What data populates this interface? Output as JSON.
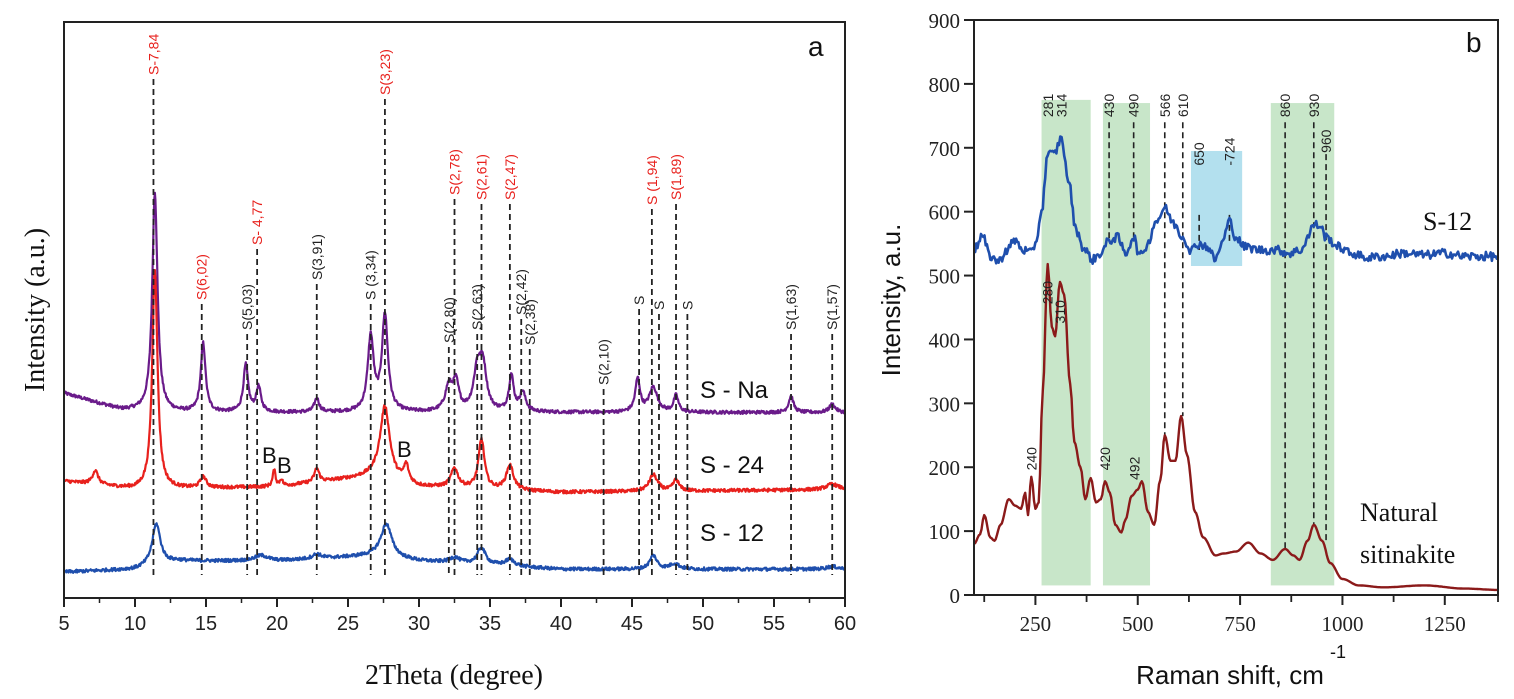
{
  "chart_data": [
    {
      "panel": "a",
      "type": "line",
      "title": "",
      "panel_label": "a",
      "xlabel": "2Theta (degree)",
      "ylabel": "Intensity (a.u.)",
      "xlim": [
        5,
        60
      ],
      "xticks": [
        5,
        10,
        15,
        20,
        25,
        30,
        35,
        40,
        45,
        50,
        55,
        60
      ],
      "x_minor_step": 2.5,
      "yticks": [],
      "grid": false,
      "series": [
        {
          "name": "S - Na",
          "color": "#6a1b8a",
          "baseline": 0.0,
          "offset": 2.9,
          "peaks": [
            [
              11.4,
              4.0,
              0.22
            ],
            [
              14.8,
              1.25,
              0.2
            ],
            [
              17.8,
              0.85,
              0.2
            ],
            [
              18.7,
              0.45,
              0.2
            ],
            [
              22.8,
              0.25,
              0.2
            ],
            [
              26.6,
              1.35,
              0.25
            ],
            [
              27.6,
              1.75,
              0.25
            ],
            [
              32.1,
              0.45,
              0.3
            ],
            [
              32.6,
              0.5,
              0.25
            ],
            [
              34.1,
              0.7,
              0.3
            ],
            [
              34.5,
              0.8,
              0.3
            ],
            [
              36.5,
              0.65,
              0.2
            ],
            [
              37.3,
              0.35,
              0.25
            ],
            [
              45.4,
              0.6,
              0.2
            ],
            [
              46.5,
              0.45,
              0.35
            ],
            [
              48.1,
              0.3,
              0.2
            ],
            [
              56.2,
              0.3,
              0.2
            ],
            [
              59.1,
              0.15,
              0.25
            ]
          ],
          "background": [
            [
              5,
              0.35
            ],
            [
              9,
              0.05
            ],
            [
              12,
              0.0
            ],
            [
              60,
              0.0
            ]
          ]
        },
        {
          "name": "S - 24",
          "color": "#e8211d",
          "offset": 1.45,
          "peaks": [
            [
              7.2,
              0.25,
              0.25
            ],
            [
              11.4,
              4.0,
              0.22
            ],
            [
              14.8,
              0.2,
              0.25
            ],
            [
              19.8,
              0.3,
              0.12
            ],
            [
              20.3,
              0.12,
              0.12
            ],
            [
              22.8,
              0.25,
              0.2
            ],
            [
              27.6,
              1.3,
              0.4
            ],
            [
              29.1,
              0.3,
              0.2
            ],
            [
              32.5,
              0.35,
              0.3
            ],
            [
              34.4,
              0.9,
              0.25
            ],
            [
              36.4,
              0.45,
              0.3
            ],
            [
              46.5,
              0.3,
              0.35
            ],
            [
              48.1,
              0.2,
              0.25
            ],
            [
              59.1,
              0.1,
              0.5
            ]
          ],
          "background": [
            [
              5,
              0.2
            ],
            [
              10,
              0.05
            ],
            [
              20,
              0.1
            ],
            [
              27,
              0.3
            ],
            [
              30,
              0.1
            ],
            [
              40,
              0.0
            ],
            [
              60,
              0.05
            ]
          ]
        },
        {
          "name": "S - 12",
          "color": "#1f4fad",
          "offset": 0.0,
          "peaks": [
            [
              11.5,
              0.75,
              0.35
            ],
            [
              18.9,
              0.1,
              0.6
            ],
            [
              22.8,
              0.08,
              0.4
            ],
            [
              27.7,
              0.6,
              0.45
            ],
            [
              32.5,
              0.1,
              0.4
            ],
            [
              34.4,
              0.3,
              0.35
            ],
            [
              36.4,
              0.12,
              0.4
            ],
            [
              46.5,
              0.25,
              0.3
            ],
            [
              48.0,
              0.1,
              0.4
            ],
            [
              59.1,
              0.05,
              0.5
            ]
          ],
          "background": [
            [
              5,
              0.0
            ],
            [
              10,
              0.05
            ],
            [
              13,
              0.2
            ],
            [
              20,
              0.2
            ],
            [
              27,
              0.3
            ],
            [
              30,
              0.2
            ],
            [
              40,
              0.05
            ],
            [
              60,
              0.05
            ]
          ]
        }
      ],
      "series_labels": [
        "S - Na",
        "S - 24",
        "S - 12"
      ],
      "reference_lines": [
        {
          "x": 11.3,
          "label": "S-7,84",
          "color": "#e8211d"
        },
        {
          "x": 14.7,
          "label": "S(6,02)",
          "color": "#e8211d"
        },
        {
          "x": 17.9,
          "label": "S(5,03)",
          "color": "#222222"
        },
        {
          "x": 18.6,
          "label": "S- 4,77",
          "color": "#e8211d"
        },
        {
          "x": 22.8,
          "label": "S(3,91)",
          "color": "#222222"
        },
        {
          "x": 26.6,
          "label": "S (3,34)",
          "color": "#222222"
        },
        {
          "x": 27.6,
          "label": "S(3,23)",
          "color": "#e8211d"
        },
        {
          "x": 32.1,
          "label": "S(2,80)",
          "color": "#222222"
        },
        {
          "x": 32.5,
          "label": "S(2,78)",
          "color": "#e8211d"
        },
        {
          "x": 34.1,
          "label": "S(2,63)",
          "color": "#222222"
        },
        {
          "x": 34.4,
          "label": "S(2,61)",
          "color": "#e8211d"
        },
        {
          "x": 36.4,
          "label": "S(2,47)",
          "color": "#e8211d"
        },
        {
          "x": 37.2,
          "label": "S(2,42)",
          "color": "#222222"
        },
        {
          "x": 37.8,
          "label": "S(2,38)",
          "color": "#222222"
        },
        {
          "x": 43.0,
          "label": "S(2,10)",
          "color": "#222222"
        },
        {
          "x": 45.5,
          "label": "S",
          "color": "#222222"
        },
        {
          "x": 46.4,
          "label": "S (1,94)",
          "color": "#e8211d"
        },
        {
          "x": 46.9,
          "label": "S",
          "color": "#222222"
        },
        {
          "x": 48.1,
          "label": "S(1,89)",
          "color": "#e8211d"
        },
        {
          "x": 48.9,
          "label": "S",
          "color": "#222222"
        },
        {
          "x": 56.2,
          "label": "S(1,63)",
          "color": "#222222"
        },
        {
          "x": 59.1,
          "label": "S(1,57)",
          "color": "#222222"
        }
      ],
      "annotations": [
        {
          "text": "B",
          "x": 19.5,
          "series": "S - 24"
        },
        {
          "text": "B",
          "x": 20.4,
          "series": "S - 24"
        },
        {
          "text": "B",
          "x": 29.4,
          "series": "S - 24"
        }
      ]
    },
    {
      "panel": "b",
      "type": "line",
      "title": "",
      "panel_label": "b",
      "xlabel": "Raman shift, cm",
      "xlabel_superscript": "-1",
      "ylabel": "Intensity, a.u.",
      "xlim": [
        100,
        1380
      ],
      "ylim": [
        0,
        900
      ],
      "xticks": [
        250,
        500,
        750,
        1000,
        1250
      ],
      "x_minor_ticks": [
        125,
        375,
        625,
        875,
        1125,
        1380
      ],
      "yticks": [
        0,
        100,
        200,
        300,
        400,
        500,
        600,
        700,
        800,
        900
      ],
      "grid": false,
      "shaded_regions": [
        {
          "from": 265,
          "to": 385,
          "ymin": 15,
          "ymax": 775,
          "color": "#c8e6c9"
        },
        {
          "from": 415,
          "to": 530,
          "ymin": 15,
          "ymax": 770,
          "color": "#c8e6c9"
        },
        {
          "from": 630,
          "to": 755,
          "ymin": 515,
          "ymax": 695,
          "color": "#b3e0ee"
        },
        {
          "from": 825,
          "to": 980,
          "ymin": 15,
          "ymax": 770,
          "color": "#c8e6c9"
        }
      ],
      "series": [
        {
          "name": "S-12",
          "color": "#1f4fad",
          "points": [
            [
              100,
              540
            ],
            [
              120,
              562
            ],
            [
              140,
              530
            ],
            [
              160,
              522
            ],
            [
              180,
              540
            ],
            [
              200,
              555
            ],
            [
              220,
              540
            ],
            [
              240,
              535
            ],
            [
              250,
              550
            ],
            [
              265,
              600
            ],
            [
              280,
              690
            ],
            [
              295,
              690
            ],
            [
              314,
              715
            ],
            [
              330,
              650
            ],
            [
              350,
              570
            ],
            [
              370,
              540
            ],
            [
              390,
              525
            ],
            [
              410,
              535
            ],
            [
              430,
              555
            ],
            [
              450,
              560
            ],
            [
              470,
              535
            ],
            [
              490,
              560
            ],
            [
              505,
              530
            ],
            [
              520,
              545
            ],
            [
              545,
              585
            ],
            [
              566,
              605
            ],
            [
              590,
              580
            ],
            [
              610,
              560
            ],
            [
              630,
              540
            ],
            [
              650,
              550
            ],
            [
              670,
              545
            ],
            [
              690,
              525
            ],
            [
              705,
              550
            ],
            [
              724,
              585
            ],
            [
              740,
              560
            ],
            [
              760,
              545
            ],
            [
              800,
              540
            ],
            [
              840,
              540
            ],
            [
              870,
              535
            ],
            [
              900,
              540
            ],
            [
              915,
              560
            ],
            [
              930,
              580
            ],
            [
              945,
              578
            ],
            [
              960,
              560
            ],
            [
              990,
              545
            ],
            [
              1020,
              535
            ],
            [
              1060,
              528
            ],
            [
              1100,
              530
            ],
            [
              1150,
              535
            ],
            [
              1200,
              532
            ],
            [
              1250,
              535
            ],
            [
              1300,
              530
            ],
            [
              1380,
              530
            ]
          ]
        },
        {
          "name": "Natural sitinakite",
          "color": "#8b1a1a",
          "points": [
            [
              100,
              80
            ],
            [
              115,
              95
            ],
            [
              125,
              125
            ],
            [
              140,
              90
            ],
            [
              150,
              85
            ],
            [
              165,
              110
            ],
            [
              185,
              150
            ],
            [
              200,
              140
            ],
            [
              215,
              135
            ],
            [
              225,
              160
            ],
            [
              232,
              125
            ],
            [
              240,
              185
            ],
            [
              250,
              135
            ],
            [
              258,
              145
            ],
            [
              268,
              320
            ],
            [
              280,
              518
            ],
            [
              290,
              420
            ],
            [
              298,
              405
            ],
            [
              310,
              490
            ],
            [
              320,
              470
            ],
            [
              335,
              330
            ],
            [
              345,
              240
            ],
            [
              360,
              200
            ],
            [
              372,
              150
            ],
            [
              385,
              183
            ],
            [
              398,
              145
            ],
            [
              410,
              150
            ],
            [
              420,
              178
            ],
            [
              432,
              160
            ],
            [
              445,
              110
            ],
            [
              460,
              98
            ],
            [
              470,
              118
            ],
            [
              485,
              155
            ],
            [
              500,
              165
            ],
            [
              510,
              178
            ],
            [
              525,
              130
            ],
            [
              540,
              110
            ],
            [
              555,
              180
            ],
            [
              566,
              250
            ],
            [
              580,
              210
            ],
            [
              592,
              210
            ],
            [
              606,
              280
            ],
            [
              620,
              220
            ],
            [
              640,
              130
            ],
            [
              660,
              90
            ],
            [
              690,
              62
            ],
            [
              710,
              65
            ],
            [
              740,
              68
            ],
            [
              770,
              82
            ],
            [
              800,
              65
            ],
            [
              830,
              55
            ],
            [
              860,
              72
            ],
            [
              880,
              62
            ],
            [
              895,
              55
            ],
            [
              915,
              85
            ],
            [
              930,
              110
            ],
            [
              950,
              85
            ],
            [
              970,
              50
            ],
            [
              1000,
              25
            ],
            [
              1040,
              15
            ],
            [
              1100,
              12
            ],
            [
              1200,
              15
            ],
            [
              1300,
              10
            ],
            [
              1380,
              8
            ]
          ]
        }
      ],
      "series_labels": [
        "S-12",
        "Natural sitinakite"
      ],
      "reference_lines": [
        {
          "x": 566,
          "ymin": 250,
          "ymax": 740
        },
        {
          "x": 610,
          "ymin": 280,
          "ymax": 740
        },
        {
          "x": 430,
          "ymin": 555,
          "ymax": 740
        },
        {
          "x": 490,
          "ymin": 560,
          "ymax": 740
        },
        {
          "x": 650,
          "ymin": 540,
          "ymax": 595
        },
        {
          "x": 724,
          "ymin": 550,
          "ymax": 595
        },
        {
          "x": 860,
          "ymin": 72,
          "ymax": 740
        },
        {
          "x": 930,
          "ymin": 110,
          "ymax": 740
        },
        {
          "x": 960,
          "ymin": 85,
          "ymax": 690
        }
      ],
      "peak_labels_s12": [
        {
          "x": 281,
          "text": "281"
        },
        {
          "x": 314,
          "text": "314"
        },
        {
          "x": 430,
          "text": "430"
        },
        {
          "x": 490,
          "text": "490"
        },
        {
          "x": 566,
          "text": "566"
        },
        {
          "x": 610,
          "text": "610"
        },
        {
          "x": 650,
          "text": "650"
        },
        {
          "x": 724,
          "text": "-724"
        },
        {
          "x": 860,
          "text": "860"
        },
        {
          "x": 930,
          "text": "930"
        },
        {
          "x": 960,
          "text": "960"
        }
      ],
      "peak_labels_natural": [
        {
          "x": 280,
          "text": "280"
        },
        {
          "x": 310,
          "text": "310"
        },
        {
          "x": 240,
          "text": "240"
        },
        {
          "x": 420,
          "text": "420"
        },
        {
          "x": 492,
          "text": "492"
        }
      ]
    }
  ]
}
